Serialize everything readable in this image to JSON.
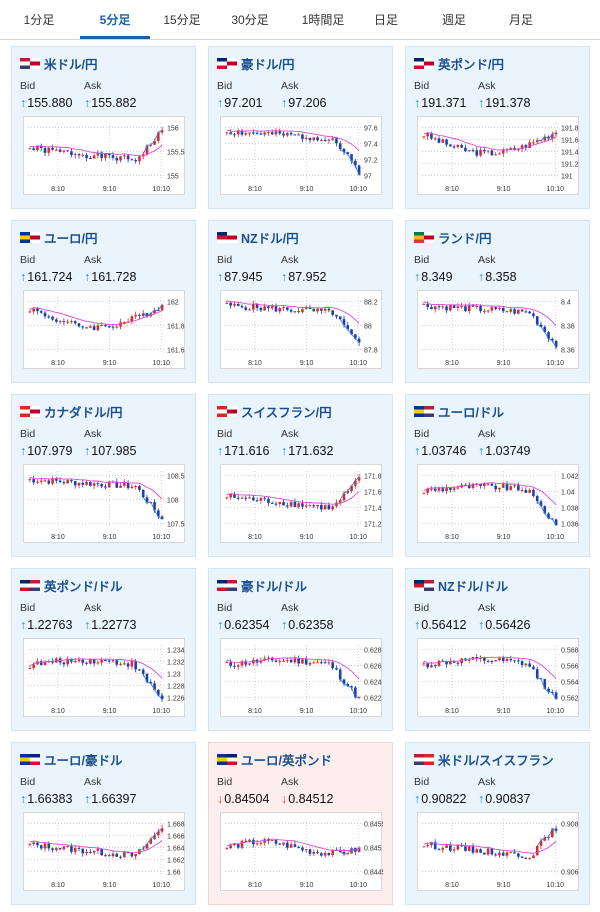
{
  "tabs": [
    {
      "label": "1分足",
      "active": false
    },
    {
      "label": "5分足",
      "active": true
    },
    {
      "label": "15分足",
      "active": false
    },
    {
      "label": "30分足",
      "active": false
    },
    {
      "label": "1時間足",
      "active": false
    },
    {
      "label": "日足",
      "active": false
    },
    {
      "label": "週足",
      "active": false
    },
    {
      "label": "月足",
      "active": false
    }
  ],
  "bid_label": "Bid",
  "ask_label": "Ask",
  "colors": {
    "up_candle": "#d32f2f",
    "down_candle": "#1f3fb0",
    "ma_line": "#d84bd8",
    "up_arrow": "#1e88e5",
    "down_arrow": "#e53935",
    "accent": "#1a5fa8"
  },
  "cards": [
    {
      "pair": "米ドル/円",
      "flags": [
        "US",
        "JP"
      ],
      "bid": "155.880",
      "ask": "155.882",
      "dir": "up",
      "chart": {
        "yticks": [
          "156",
          "155.5",
          "155"
        ],
        "xticks": [
          "8:10",
          "9:10",
          "10:10"
        ],
        "shape": "spike",
        "seed": 1
      }
    },
    {
      "pair": "豪ドル/円",
      "flags": [
        "AU",
        "JP"
      ],
      "bid": "97.201",
      "ask": "97.206",
      "dir": "up",
      "chart": {
        "yticks": [
          "97.6",
          "97.4",
          "97.2",
          "97"
        ],
        "xticks": [
          "8:10",
          "9:10",
          "10:10"
        ],
        "shape": "drop",
        "seed": 2
      }
    },
    {
      "pair": "英ポンド/円",
      "flags": [
        "GB",
        "JP"
      ],
      "bid": "191.371",
      "ask": "191.378",
      "dir": "up",
      "chart": {
        "yticks": [
          "191.8",
          "191.6",
          "191.4",
          "191.2",
          "191"
        ],
        "xticks": [
          "8:10",
          "9:10",
          "10:10"
        ],
        "shape": "dip",
        "seed": 3
      }
    },
    {
      "pair": "ユーロ/円",
      "flags": [
        "EU",
        "JP"
      ],
      "bid": "161.724",
      "ask": "161.728",
      "dir": "up",
      "chart": {
        "yticks": [
          "162",
          "161.8",
          "161.6"
        ],
        "xticks": [
          "8:10",
          "9:10",
          "10:10"
        ],
        "shape": "dip",
        "seed": 4
      }
    },
    {
      "pair": "NZドル/円",
      "flags": [
        "NZ",
        "JP"
      ],
      "bid": "87.945",
      "ask": "87.952",
      "dir": "up",
      "chart": {
        "yticks": [
          "88.2",
          "88",
          "87.8"
        ],
        "xticks": [
          "8:10",
          "9:10",
          "10:10"
        ],
        "shape": "drop",
        "seed": 5
      }
    },
    {
      "pair": "ランド/円",
      "flags": [
        "ZA",
        "JP"
      ],
      "bid": "8.349",
      "ask": "8.358",
      "dir": "up",
      "chart": {
        "yticks": [
          "8.4",
          "8.38",
          "8.36"
        ],
        "xticks": [
          "8:10",
          "9:10",
          "10:10"
        ],
        "shape": "drop",
        "seed": 6
      }
    },
    {
      "pair": "カナダドル/円",
      "flags": [
        "CA",
        "JP"
      ],
      "bid": "107.979",
      "ask": "107.985",
      "dir": "up",
      "chart": {
        "yticks": [
          "108.5",
          "108",
          "107.5"
        ],
        "xticks": [
          "8:10",
          "9:10",
          "10:10"
        ],
        "shape": "drop",
        "seed": 7
      }
    },
    {
      "pair": "スイスフラン/円",
      "flags": [
        "CH",
        "JP"
      ],
      "bid": "171.616",
      "ask": "171.632",
      "dir": "up",
      "chart": {
        "yticks": [
          "171.8",
          "171.6",
          "171.4",
          "171.2"
        ],
        "xticks": [
          "8:10",
          "9:10",
          "10:10"
        ],
        "shape": "spike",
        "seed": 8
      }
    },
    {
      "pair": "ユーロ/ドル",
      "flags": [
        "EU",
        "US"
      ],
      "bid": "1.03746",
      "ask": "1.03749",
      "dir": "up",
      "chart": {
        "yticks": [
          "1.042",
          "1.04",
          "1.038",
          "1.036"
        ],
        "xticks": [
          "8:10",
          "9:10",
          "10:10"
        ],
        "shape": "humpdrop",
        "seed": 9
      }
    },
    {
      "pair": "英ポンド/ドル",
      "flags": [
        "GB",
        "US"
      ],
      "bid": "1.22763",
      "ask": "1.22773",
      "dir": "up",
      "chart": {
        "yticks": [
          "1.234",
          "1.232",
          "1.23",
          "1.228",
          "1.226"
        ],
        "xticks": [
          "8:10",
          "9:10",
          "10:10"
        ],
        "shape": "humpdrop",
        "seed": 10
      }
    },
    {
      "pair": "豪ドル/ドル",
      "flags": [
        "AU",
        "US"
      ],
      "bid": "0.62354",
      "ask": "0.62358",
      "dir": "up",
      "chart": {
        "yticks": [
          "0.628",
          "0.626",
          "0.624",
          "0.622"
        ],
        "xticks": [
          "8:10",
          "9:10",
          "10:10"
        ],
        "shape": "humpdrop",
        "seed": 11
      }
    },
    {
      "pair": "NZドル/ドル",
      "flags": [
        "NZ",
        "US"
      ],
      "bid": "0.56412",
      "ask": "0.56426",
      "dir": "up",
      "chart": {
        "yticks": [
          "0.568",
          "0.566",
          "0.564",
          "0.562"
        ],
        "xticks": [
          "8:10",
          "9:10",
          "10:10"
        ],
        "shape": "humpdrop",
        "seed": 12
      }
    },
    {
      "pair": "ユーロ/豪ドル",
      "flags": [
        "EU",
        "AU"
      ],
      "bid": "1.66383",
      "ask": "1.66397",
      "dir": "up",
      "chart": {
        "yticks": [
          "1.668",
          "1.666",
          "1.664",
          "1.662",
          "1.66"
        ],
        "xticks": [
          "8:10",
          "9:10",
          "10:10"
        ],
        "shape": "spike",
        "seed": 13
      }
    },
    {
      "pair": "ユーロ/英ポンド",
      "flags": [
        "EU",
        "GB"
      ],
      "bid": "0.84504",
      "ask": "0.84512",
      "dir": "down",
      "chart": {
        "yticks": [
          "0.8455",
          "0.845",
          "0.8445"
        ],
        "xticks": [
          "8:10",
          "9:10",
          "10:10"
        ],
        "shape": "flat",
        "seed": 14
      }
    },
    {
      "pair": "米ドル/スイスフラン",
      "flags": [
        "US",
        "CH"
      ],
      "bid": "0.90822",
      "ask": "0.90837",
      "dir": "up",
      "chart": {
        "yticks": [
          "0.908",
          "0.906"
        ],
        "xticks": [
          "8:10",
          "9:10",
          "10:10"
        ],
        "shape": "spike",
        "seed": 15
      }
    }
  ]
}
